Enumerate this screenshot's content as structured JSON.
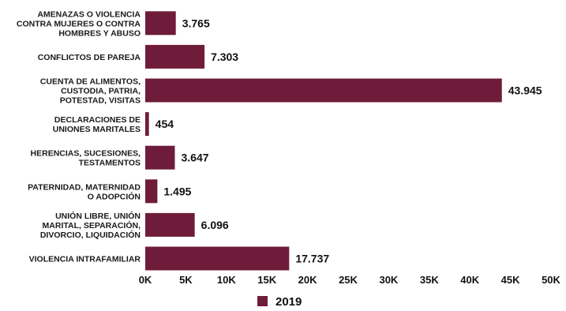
{
  "chart_data": {
    "type": "bar",
    "orientation": "horizontal",
    "categories": [
      "AMENAZAS O VIOLENCIA\nCONTRA MUJERES O CONTRA\nHOMBRES Y ABUSO",
      "CONFLICTOS DE PAREJA",
      "CUENTA DE ALIMENTOS,\nCUSTODIA, PATRIA,\nPOTESTAD, VISITAS",
      "DECLARACIONES DE\nUNIONES MARITALES",
      "HERENCIAS, SUCESIONES,\nTESTAMENTOS",
      "PATERNIDAD, MATERNIDAD\nO ADOPCIÓN",
      "UNIÓN LIBRE, UNIÓN\nMARITAL, SEPARACIÓN,\nDIVORCIO, LIQUIDACIÓN",
      "VIOLENCIA INTRAFAMILIAR"
    ],
    "series": [
      {
        "name": "2019",
        "values": [
          3765,
          7303,
          43945,
          454,
          3647,
          1495,
          6096,
          17737
        ],
        "value_labels": [
          "3.765",
          "7.303",
          "43.945",
          "454",
          "3.647",
          "1.495",
          "6.096",
          "17.737"
        ],
        "color": "#6e1c3a"
      }
    ],
    "xlim": [
      0,
      50000
    ],
    "xticks": [
      0,
      5000,
      10000,
      15000,
      20000,
      25000,
      30000,
      35000,
      40000,
      45000,
      50000
    ],
    "xtick_labels": [
      "0K",
      "5K",
      "10K",
      "15K",
      "20K",
      "25K",
      "30K",
      "35K",
      "40K",
      "45K",
      "50K"
    ],
    "grid": false,
    "legend_position": "bottom"
  }
}
